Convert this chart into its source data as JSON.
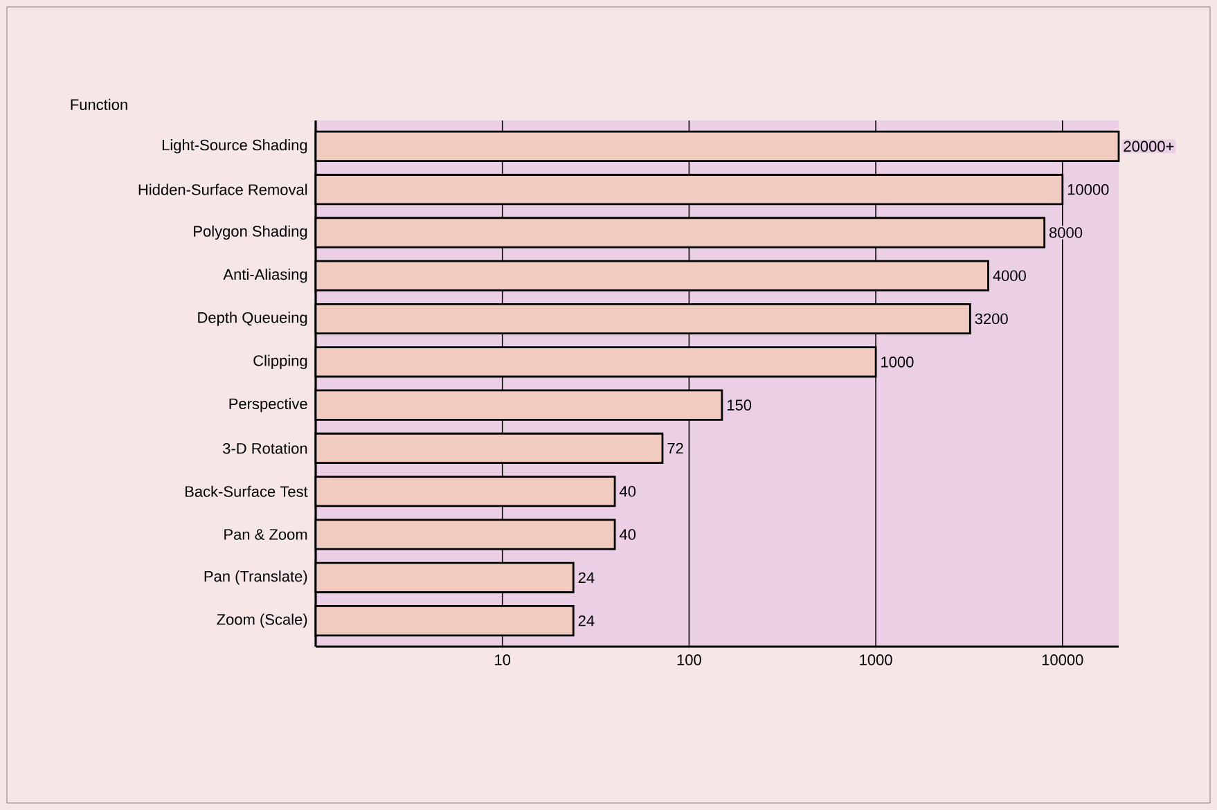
{
  "chart_data": {
    "type": "bar",
    "orientation": "horizontal",
    "ylabel": "Function",
    "categories": [
      "Light-Source Shading",
      "Hidden-Surface Removal",
      "Polygon Shading",
      "Anti-Aliasing",
      "Depth Queueing",
      "Clipping",
      "Perspective",
      "3-D Rotation",
      "Back-Surface Test",
      "Pan & Zoom",
      "Pan (Translate)",
      "Zoom (Scale)"
    ],
    "values": [
      20000,
      10000,
      8000,
      4000,
      3200,
      1000,
      150,
      72,
      40,
      40,
      24,
      24
    ],
    "value_labels": [
      "20000+",
      "10000",
      "8000",
      "4000",
      "3200",
      "1000",
      "150",
      "72",
      "40",
      "40",
      "24",
      "24"
    ],
    "color": "#f2cbc0",
    "log": "x",
    "xlim": [
      1,
      20000
    ],
    "xticks": [
      10,
      100,
      1000,
      10000
    ],
    "grid": "x"
  }
}
